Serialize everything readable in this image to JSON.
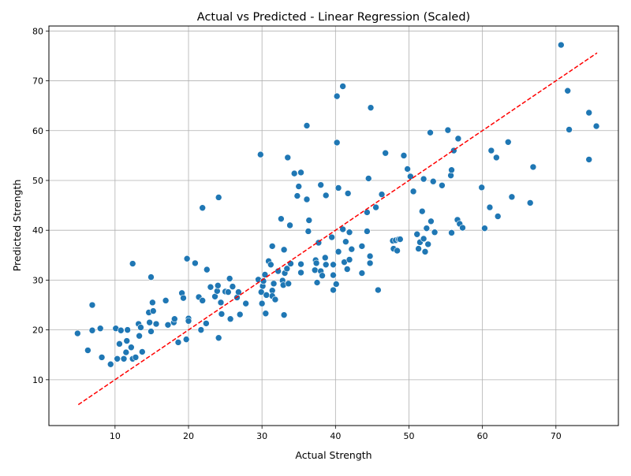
{
  "chart_data": {
    "type": "scatter",
    "title": "Actual vs Predicted - Linear Regression (Scaled)",
    "xlabel": "Actual Strength",
    "ylabel": "Predicted Strength",
    "xlim": [
      1,
      78.5
    ],
    "ylim": [
      0.8,
      81
    ],
    "xticks": [
      10,
      20,
      30,
      40,
      50,
      60,
      70
    ],
    "yticks": [
      10,
      20,
      30,
      40,
      50,
      60,
      70,
      80
    ],
    "grid": true,
    "point_color": "#1f77b4",
    "reference_line": {
      "from": [
        5,
        5
      ],
      "to": [
        75.6,
        75.6
      ],
      "color": "#ff0000",
      "style": "dashed"
    },
    "points": [
      [
        4.9,
        19.3
      ],
      [
        6.3,
        15.9
      ],
      [
        6.9,
        19.9
      ],
      [
        6.9,
        25.0
      ],
      [
        8.0,
        20.3
      ],
      [
        8.2,
        14.5
      ],
      [
        9.4,
        13.1
      ],
      [
        10.1,
        20.3
      ],
      [
        10.3,
        14.2
      ],
      [
        10.6,
        17.2
      ],
      [
        10.8,
        19.9
      ],
      [
        11.2,
        14.2
      ],
      [
        11.5,
        15.5
      ],
      [
        11.6,
        17.8
      ],
      [
        11.7,
        20.0
      ],
      [
        12.2,
        16.5
      ],
      [
        12.4,
        33.3
      ],
      [
        12.4,
        14.2
      ],
      [
        12.8,
        14.5
      ],
      [
        13.2,
        21.2
      ],
      [
        13.3,
        18.8
      ],
      [
        13.5,
        20.5
      ],
      [
        13.7,
        15.6
      ],
      [
        14.6,
        23.5
      ],
      [
        14.7,
        21.5
      ],
      [
        14.9,
        30.6
      ],
      [
        14.9,
        19.7
      ],
      [
        15.1,
        25.5
      ],
      [
        15.2,
        23.8
      ],
      [
        15.6,
        21.2
      ],
      [
        16.9,
        25.9
      ],
      [
        17.2,
        21.0
      ],
      [
        18.0,
        21.5
      ],
      [
        18.1,
        22.2
      ],
      [
        18.6,
        17.5
      ],
      [
        19.1,
        27.4
      ],
      [
        19.3,
        26.4
      ],
      [
        19.7,
        18.1
      ],
      [
        19.8,
        34.3
      ],
      [
        20.0,
        22.3
      ],
      [
        20.0,
        21.8
      ],
      [
        20.9,
        33.4
      ],
      [
        21.4,
        26.6
      ],
      [
        21.7,
        20.0
      ],
      [
        21.9,
        25.9
      ],
      [
        21.9,
        44.5
      ],
      [
        22.4,
        21.3
      ],
      [
        22.5,
        32.1
      ],
      [
        23.0,
        28.6
      ],
      [
        23.6,
        26.7
      ],
      [
        23.9,
        27.8
      ],
      [
        24.0,
        28.9
      ],
      [
        24.1,
        18.4
      ],
      [
        24.1,
        46.6
      ],
      [
        24.4,
        25.5
      ],
      [
        24.5,
        23.2
      ],
      [
        25.0,
        27.7
      ],
      [
        25.4,
        27.6
      ],
      [
        25.6,
        30.3
      ],
      [
        25.7,
        22.2
      ],
      [
        26.0,
        28.7
      ],
      [
        26.6,
        26.5
      ],
      [
        26.8,
        27.6
      ],
      [
        27.0,
        23.1
      ],
      [
        27.8,
        25.3
      ],
      [
        29.5,
        30.1
      ],
      [
        29.8,
        55.2
      ],
      [
        29.9,
        27.6
      ],
      [
        30.0,
        25.3
      ],
      [
        30.1,
        28.8
      ],
      [
        30.2,
        29.8
      ],
      [
        30.4,
        31.1
      ],
      [
        30.5,
        23.3
      ],
      [
        30.6,
        27.0
      ],
      [
        30.9,
        33.8
      ],
      [
        31.2,
        33.1
      ],
      [
        31.4,
        36.8
      ],
      [
        31.4,
        27.9
      ],
      [
        31.4,
        26.8
      ],
      [
        31.6,
        29.3
      ],
      [
        31.8,
        26.1
      ],
      [
        32.2,
        31.8
      ],
      [
        32.6,
        42.3
      ],
      [
        32.8,
        29.9
      ],
      [
        32.9,
        29.0
      ],
      [
        33.0,
        23.0
      ],
      [
        33.0,
        36.1
      ],
      [
        33.1,
        31.4
      ],
      [
        33.4,
        32.3
      ],
      [
        33.5,
        54.6
      ],
      [
        33.6,
        29.3
      ],
      [
        33.8,
        41.0
      ],
      [
        33.9,
        33.3
      ],
      [
        34.4,
        51.4
      ],
      [
        34.8,
        46.9
      ],
      [
        35.0,
        48.8
      ],
      [
        35.3,
        51.6
      ],
      [
        35.3,
        31.5
      ],
      [
        35.3,
        33.2
      ],
      [
        36.1,
        61.0
      ],
      [
        36.1,
        46.2
      ],
      [
        36.3,
        39.8
      ],
      [
        36.4,
        42.0
      ],
      [
        37.2,
        32.0
      ],
      [
        37.3,
        34.0
      ],
      [
        37.4,
        33.4
      ],
      [
        37.5,
        29.5
      ],
      [
        37.7,
        37.5
      ],
      [
        38.0,
        49.1
      ],
      [
        38.0,
        31.8
      ],
      [
        38.2,
        30.9
      ],
      [
        38.6,
        34.5
      ],
      [
        38.7,
        47.0
      ],
      [
        38.7,
        33.1
      ],
      [
        39.5,
        38.6
      ],
      [
        39.7,
        33.1
      ],
      [
        39.7,
        28.0
      ],
      [
        39.7,
        31.0
      ],
      [
        40.1,
        29.2
      ],
      [
        40.2,
        66.9
      ],
      [
        40.2,
        57.6
      ],
      [
        40.4,
        48.5
      ],
      [
        40.4,
        35.7
      ],
      [
        41.0,
        68.9
      ],
      [
        41.0,
        40.2
      ],
      [
        41.2,
        33.6
      ],
      [
        41.4,
        37.7
      ],
      [
        41.6,
        32.2
      ],
      [
        41.7,
        47.4
      ],
      [
        41.9,
        39.6
      ],
      [
        41.9,
        34.1
      ],
      [
        42.2,
        36.2
      ],
      [
        43.6,
        31.4
      ],
      [
        43.6,
        36.8
      ],
      [
        44.3,
        43.6
      ],
      [
        44.3,
        39.8
      ],
      [
        44.5,
        50.4
      ],
      [
        44.7,
        34.8
      ],
      [
        44.7,
        33.4
      ],
      [
        44.8,
        64.6
      ],
      [
        45.5,
        44.6
      ],
      [
        45.8,
        28.0
      ],
      [
        46.3,
        47.2
      ],
      [
        46.8,
        55.5
      ],
      [
        47.8,
        37.9
      ],
      [
        47.9,
        36.3
      ],
      [
        48.2,
        38.0
      ],
      [
        48.4,
        35.9
      ],
      [
        48.6,
        38.2
      ],
      [
        48.8,
        38.2
      ],
      [
        49.3,
        55.0
      ],
      [
        49.8,
        52.3
      ],
      [
        50.2,
        50.8
      ],
      [
        50.6,
        47.8
      ],
      [
        51.1,
        39.2
      ],
      [
        51.3,
        36.3
      ],
      [
        51.5,
        37.6
      ],
      [
        51.8,
        43.8
      ],
      [
        52.0,
        50.3
      ],
      [
        52.0,
        38.3
      ],
      [
        52.2,
        35.7
      ],
      [
        52.4,
        40.4
      ],
      [
        52.6,
        37.2
      ],
      [
        52.9,
        59.6
      ],
      [
        53.0,
        41.8
      ],
      [
        53.3,
        49.8
      ],
      [
        53.5,
        39.6
      ],
      [
        54.5,
        49.0
      ],
      [
        55.3,
        60.1
      ],
      [
        55.7,
        51.0
      ],
      [
        55.8,
        52.1
      ],
      [
        55.8,
        39.5
      ],
      [
        56.1,
        56.0
      ],
      [
        56.6,
        42.1
      ],
      [
        56.7,
        58.4
      ],
      [
        56.9,
        41.3
      ],
      [
        57.3,
        40.5
      ],
      [
        59.9,
        48.6
      ],
      [
        60.3,
        40.4
      ],
      [
        61.0,
        44.6
      ],
      [
        61.2,
        56.0
      ],
      [
        61.9,
        54.6
      ],
      [
        62.1,
        42.8
      ],
      [
        63.5,
        57.7
      ],
      [
        64.0,
        46.7
      ],
      [
        66.5,
        45.5
      ],
      [
        66.9,
        52.7
      ],
      [
        70.7,
        77.2
      ],
      [
        71.6,
        68.0
      ],
      [
        71.8,
        60.2
      ],
      [
        74.5,
        54.2
      ],
      [
        74.5,
        63.6
      ],
      [
        75.5,
        60.9
      ]
    ]
  }
}
